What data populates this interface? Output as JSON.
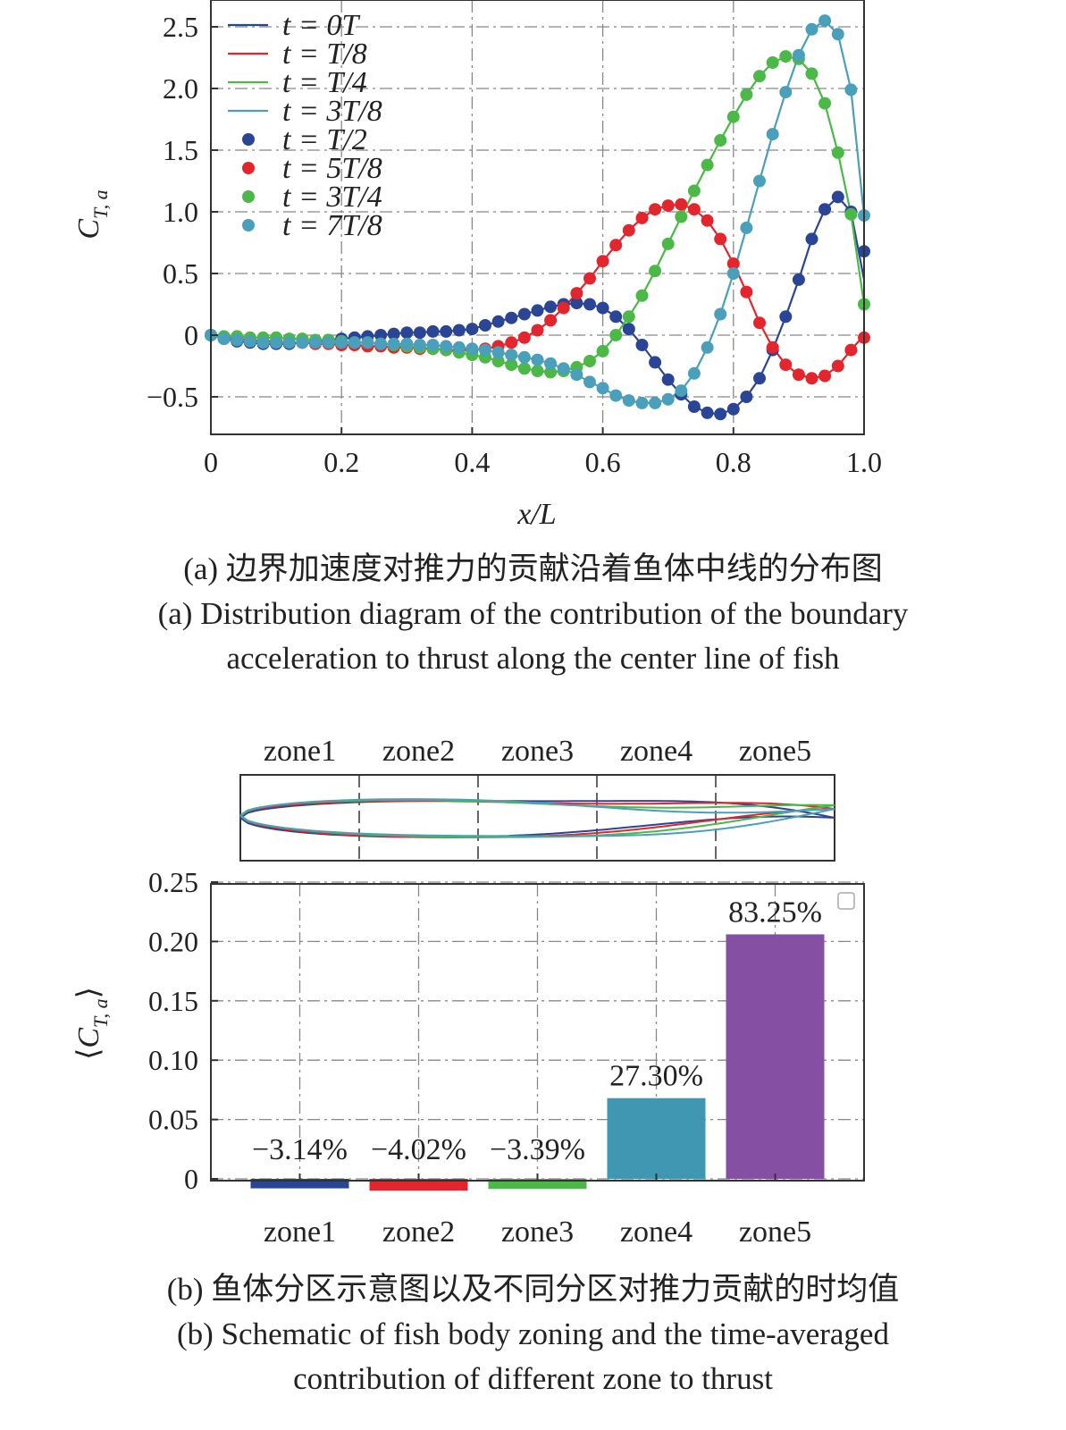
{
  "colors": {
    "t0": "#2a4596",
    "t1": "#e3262d",
    "t2": "#4bb848",
    "t3": "#4a9fba",
    "zone1": "#2a4596",
    "zone2": "#e3262d",
    "zone3": "#4bb848",
    "zone4": "#3f97b1",
    "zone5": "#8550a3"
  },
  "panel_a": {
    "caption_cn": "(a) 边界加速度对推力的贡献沿着鱼体中线的分布图",
    "caption_en_1": "(a) Distribution diagram of the contribution of the boundary",
    "caption_en_2": "acceleration to thrust along the center line of fish"
  },
  "panel_b": {
    "caption_cn": "(b) 鱼体分区示意图以及不同分区对推力贡献的时均值",
    "caption_en_1": "(b) Schematic of fish body zoning and the time-averaged",
    "caption_en_2": "contribution of different zone to thrust"
  },
  "chart_data": [
    {
      "type": "line",
      "xlabel": "x/L",
      "ylabel": "C_{T,a}",
      "xlim": [
        0,
        1.0
      ],
      "ylim": [
        -0.8,
        2.6
      ],
      "x_ticks": [
        "0",
        "0.2",
        "0.4",
        "0.6",
        "0.8",
        "1.0"
      ],
      "y_ticks": [
        "2.5",
        "2.0",
        "1.5",
        "1.0",
        "0.5",
        "0",
        "−0.5"
      ],
      "grid": true,
      "legend_position": "top-left",
      "x": [
        0,
        0.02,
        0.04,
        0.06,
        0.08,
        0.1,
        0.12,
        0.14,
        0.16,
        0.18,
        0.2,
        0.22,
        0.24,
        0.26,
        0.28,
        0.3,
        0.32,
        0.34,
        0.36,
        0.38,
        0.4,
        0.42,
        0.44,
        0.46,
        0.48,
        0.5,
        0.52,
        0.54,
        0.56,
        0.58,
        0.6,
        0.62,
        0.64,
        0.66,
        0.68,
        0.7,
        0.72,
        0.74,
        0.76,
        0.78,
        0.8,
        0.82,
        0.84,
        0.86,
        0.88,
        0.9,
        0.92,
        0.94,
        0.96,
        0.98,
        1.0
      ],
      "series": [
        {
          "name": "t = 0T",
          "marker": "line",
          "color_key": "t0",
          "values": [
            0,
            -0.03,
            -0.05,
            -0.06,
            -0.07,
            -0.07,
            -0.07,
            -0.06,
            -0.05,
            -0.04,
            -0.03,
            -0.02,
            -0.01,
            0,
            0.01,
            0.02,
            0.02,
            0.03,
            0.03,
            0.04,
            0.05,
            0.08,
            0.11,
            0.14,
            0.17,
            0.2,
            0.23,
            0.25,
            0.26,
            0.25,
            0.22,
            0.15,
            0.05,
            -0.08,
            -0.22,
            -0.36,
            -0.48,
            -0.58,
            -0.63,
            -0.64,
            -0.6,
            -0.5,
            -0.35,
            -0.12,
            0.15,
            0.45,
            0.78,
            1.02,
            1.12,
            1.0,
            0.45
          ]
        },
        {
          "name": "t = T/8",
          "marker": "line",
          "color_key": "t1",
          "values": [
            0,
            -0.02,
            -0.03,
            -0.04,
            -0.05,
            -0.05,
            -0.06,
            -0.06,
            -0.07,
            -0.07,
            -0.08,
            -0.08,
            -0.09,
            -0.09,
            -0.1,
            -0.1,
            -0.11,
            -0.11,
            -0.12,
            -0.12,
            -0.12,
            -0.11,
            -0.09,
            -0.06,
            -0.02,
            0.04,
            0.12,
            0.22,
            0.34,
            0.46,
            0.6,
            0.73,
            0.85,
            0.95,
            1.02,
            1.05,
            1.06,
            1.02,
            0.93,
            0.78,
            0.58,
            0.35,
            0.1,
            -0.1,
            -0.24,
            -0.32,
            -0.35,
            -0.33,
            -0.25,
            -0.12,
            0
          ]
        },
        {
          "name": "t = T/4",
          "marker": "line",
          "color_key": "t2",
          "values": [
            0,
            -0.01,
            -0.01,
            -0.02,
            -0.02,
            -0.02,
            -0.03,
            -0.03,
            -0.04,
            -0.04,
            -0.05,
            -0.06,
            -0.06,
            -0.07,
            -0.08,
            -0.09,
            -0.1,
            -0.11,
            -0.12,
            -0.14,
            -0.16,
            -0.18,
            -0.21,
            -0.24,
            -0.27,
            -0.29,
            -0.3,
            -0.29,
            -0.26,
            -0.21,
            -0.13,
            0.0,
            0.15,
            0.32,
            0.52,
            0.74,
            0.96,
            1.17,
            1.38,
            1.58,
            1.77,
            1.95,
            2.1,
            2.21,
            2.26,
            2.24,
            2.12,
            1.88,
            1.48,
            0.98,
            0.25
          ]
        },
        {
          "name": "t = 3T/8",
          "marker": "line",
          "color_key": "t3",
          "values": [
            0,
            -0.03,
            -0.04,
            -0.05,
            -0.06,
            -0.06,
            -0.06,
            -0.06,
            -0.06,
            -0.06,
            -0.06,
            -0.06,
            -0.06,
            -0.07,
            -0.07,
            -0.07,
            -0.08,
            -0.08,
            -0.09,
            -0.1,
            -0.11,
            -0.12,
            -0.14,
            -0.16,
            -0.18,
            -0.2,
            -0.23,
            -0.27,
            -0.32,
            -0.38,
            -0.43,
            -0.49,
            -0.53,
            -0.55,
            -0.55,
            -0.52,
            -0.45,
            -0.31,
            -0.1,
            0.17,
            0.5,
            0.87,
            1.25,
            1.63,
            1.97,
            2.27,
            2.48,
            2.55,
            2.44,
            1.99,
            0.97
          ]
        },
        {
          "name": "t = T/2",
          "marker": "dot",
          "color_key": "t0",
          "values": [
            0,
            -0.03,
            -0.05,
            -0.06,
            -0.07,
            -0.07,
            -0.07,
            -0.06,
            -0.05,
            -0.04,
            -0.03,
            -0.02,
            -0.01,
            0,
            0.01,
            0.02,
            0.02,
            0.03,
            0.03,
            0.04,
            0.05,
            0.08,
            0.11,
            0.14,
            0.17,
            0.2,
            0.23,
            0.25,
            0.26,
            0.25,
            0.22,
            0.15,
            0.05,
            -0.08,
            -0.22,
            -0.36,
            -0.48,
            -0.58,
            -0.63,
            -0.64,
            -0.6,
            -0.5,
            -0.35,
            -0.12,
            0.15,
            0.45,
            0.78,
            1.02,
            1.12,
            1.0,
            0.68
          ]
        },
        {
          "name": "t = 5T/8",
          "marker": "dot",
          "color_key": "t1",
          "values": [
            0,
            -0.02,
            -0.03,
            -0.04,
            -0.05,
            -0.05,
            -0.06,
            -0.06,
            -0.07,
            -0.07,
            -0.08,
            -0.08,
            -0.09,
            -0.09,
            -0.1,
            -0.1,
            -0.11,
            -0.11,
            -0.12,
            -0.12,
            -0.12,
            -0.11,
            -0.09,
            -0.06,
            -0.02,
            0.04,
            0.12,
            0.22,
            0.34,
            0.46,
            0.6,
            0.73,
            0.85,
            0.95,
            1.02,
            1.05,
            1.06,
            1.02,
            0.93,
            0.78,
            0.58,
            0.35,
            0.1,
            -0.1,
            -0.24,
            -0.32,
            -0.35,
            -0.33,
            -0.25,
            -0.12,
            -0.02
          ]
        },
        {
          "name": "t = 3T/4",
          "marker": "dot",
          "color_key": "t2",
          "values": [
            0,
            -0.01,
            -0.01,
            -0.02,
            -0.02,
            -0.02,
            -0.03,
            -0.03,
            -0.04,
            -0.04,
            -0.05,
            -0.06,
            -0.06,
            -0.07,
            -0.08,
            -0.09,
            -0.1,
            -0.11,
            -0.12,
            -0.14,
            -0.16,
            -0.18,
            -0.21,
            -0.24,
            -0.27,
            -0.29,
            -0.3,
            -0.29,
            -0.26,
            -0.21,
            -0.13,
            0.0,
            0.15,
            0.32,
            0.52,
            0.74,
            0.96,
            1.17,
            1.38,
            1.58,
            1.77,
            1.95,
            2.1,
            2.21,
            2.26,
            2.24,
            2.12,
            1.88,
            1.48,
            0.98,
            0.25
          ]
        },
        {
          "name": "t = 7T/8",
          "marker": "dot",
          "color_key": "t3",
          "values": [
            0,
            -0.03,
            -0.04,
            -0.05,
            -0.06,
            -0.06,
            -0.06,
            -0.06,
            -0.06,
            -0.06,
            -0.06,
            -0.06,
            -0.06,
            -0.07,
            -0.07,
            -0.07,
            -0.08,
            -0.08,
            -0.09,
            -0.1,
            -0.11,
            -0.12,
            -0.14,
            -0.16,
            -0.18,
            -0.2,
            -0.23,
            -0.27,
            -0.32,
            -0.38,
            -0.43,
            -0.49,
            -0.53,
            -0.55,
            -0.55,
            -0.52,
            -0.45,
            -0.31,
            -0.1,
            0.17,
            0.5,
            0.87,
            1.25,
            1.63,
            1.97,
            2.27,
            2.48,
            2.55,
            2.44,
            1.99,
            0.97
          ]
        }
      ]
    },
    {
      "type": "bar",
      "ylabel": "⟨C_{T,a}⟩",
      "categories": [
        "zone1",
        "zone2",
        "zone3",
        "zone4",
        "zone5"
      ],
      "values": [
        -0.008,
        -0.01,
        -0.0085,
        0.068,
        0.206
      ],
      "data_labels": [
        "−3.14%",
        "−4.02%",
        "−3.39%",
        "27.30%",
        "83.25%"
      ],
      "color_keys": [
        "zone1",
        "zone2",
        "zone3",
        "zone4",
        "zone5"
      ],
      "ylim": [
        -0.02,
        0.25
      ],
      "y_ticks": [
        "0.25",
        "0.20",
        "0.15",
        "0.10",
        "0.05",
        "0"
      ],
      "grid": true
    }
  ],
  "schematic": {
    "zone_labels": [
      "zone1",
      "zone2",
      "zone3",
      "zone4",
      "zone5"
    ]
  }
}
